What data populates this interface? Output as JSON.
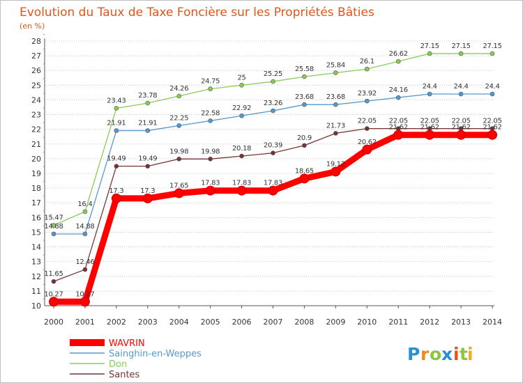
{
  "chart_data": {
    "type": "line",
    "title": "Evolution du Taux de Taxe Foncière sur les Propriétés Bâties",
    "ylabel": "(en %)",
    "xlabel": "",
    "ylim": [
      10,
      28
    ],
    "y_ticks": [
      "10",
      "11",
      "12",
      "13",
      "14",
      "15",
      "16",
      "17",
      "18",
      "19",
      "20",
      "21",
      "22",
      "23",
      "24",
      "25",
      "26",
      "27",
      "28"
    ],
    "categories": [
      "2000",
      "2001",
      "2002",
      "2003",
      "2004",
      "2005",
      "2006",
      "2007",
      "2008",
      "2009",
      "2010",
      "2011",
      "2012",
      "2013",
      "2014"
    ],
    "grid": "horizontal dotted",
    "legend_position": "bottom-left",
    "series": [
      {
        "name": "Don",
        "color": "#88cc55",
        "values": [
          15.47,
          16.4,
          23.43,
          23.78,
          24.26,
          24.75,
          25,
          25.25,
          25.58,
          25.84,
          26.1,
          26.62,
          27.15,
          27.15,
          27.15
        ],
        "labels": [
          "15.47",
          "16.4",
          "23.43",
          "23.78",
          "24.26",
          "24.75",
          "25",
          "25.25",
          "25.58",
          "25.84",
          "26.1",
          "26.62",
          "27.15",
          "27.15",
          "27.15"
        ]
      },
      {
        "name": "Sainghin-en-Weppes",
        "color": "#5599cc",
        "values": [
          14.88,
          14.88,
          21.91,
          21.91,
          22.25,
          22.58,
          22.92,
          23.26,
          23.68,
          23.68,
          23.92,
          24.16,
          24.4,
          24.4,
          24.4
        ],
        "labels": [
          "14.88",
          "14.88",
          "21.91",
          "21.91",
          "22.25",
          "22.58",
          "22.92",
          "23.26",
          "23.68",
          "23.68",
          "23.92",
          "24.16",
          "24.4",
          "24.4",
          "24.4"
        ]
      },
      {
        "name": "Santes",
        "color": "#773333",
        "values": [
          11.65,
          12.46,
          19.49,
          19.49,
          19.98,
          19.98,
          20.18,
          20.39,
          20.9,
          21.73,
          22.05,
          22.05,
          22.05,
          22.05,
          22.05
        ],
        "labels": [
          "11.65",
          "12.46",
          "19.49",
          "19.49",
          "19.98",
          "19.98",
          "20.18",
          "20.39",
          "20.9",
          "21.73",
          "22.05",
          "22.05",
          "22.05",
          "22.05",
          "22.05"
        ]
      },
      {
        "name": "WAVRIN",
        "color": "#ff0000",
        "emphasis": true,
        "values": [
          10.27,
          10.27,
          17.3,
          17.3,
          17.65,
          17.83,
          17.83,
          17.83,
          18.65,
          19.12,
          20.62,
          21.62,
          21.62,
          21.62,
          21.62
        ],
        "labels": [
          "10.27",
          "10.27",
          "17.3",
          "17.3",
          "17.65",
          "17.83",
          "17.83",
          "17.83",
          "18.65",
          "19.12",
          "20.62",
          "21.62",
          "21.62",
          "21.62",
          "21.62"
        ]
      }
    ],
    "legend": [
      {
        "name": "WAVRIN",
        "color": "#ff0000"
      },
      {
        "name": "Sainghin-en-Weppes",
        "color": "#5599cc"
      },
      {
        "name": "Don",
        "color": "#88cc55"
      },
      {
        "name": "Santes",
        "color": "#773333"
      }
    ]
  },
  "logo": {
    "text": "Proxiti",
    "letters": [
      "P",
      "r",
      "o",
      "x",
      "i",
      "t",
      "i"
    ],
    "colors": [
      "#2b8fd6",
      "#f08a1c",
      "#8cc63f",
      "#2b8fd6",
      "#e8501e",
      "#8cc63f",
      "#f5a623"
    ]
  }
}
